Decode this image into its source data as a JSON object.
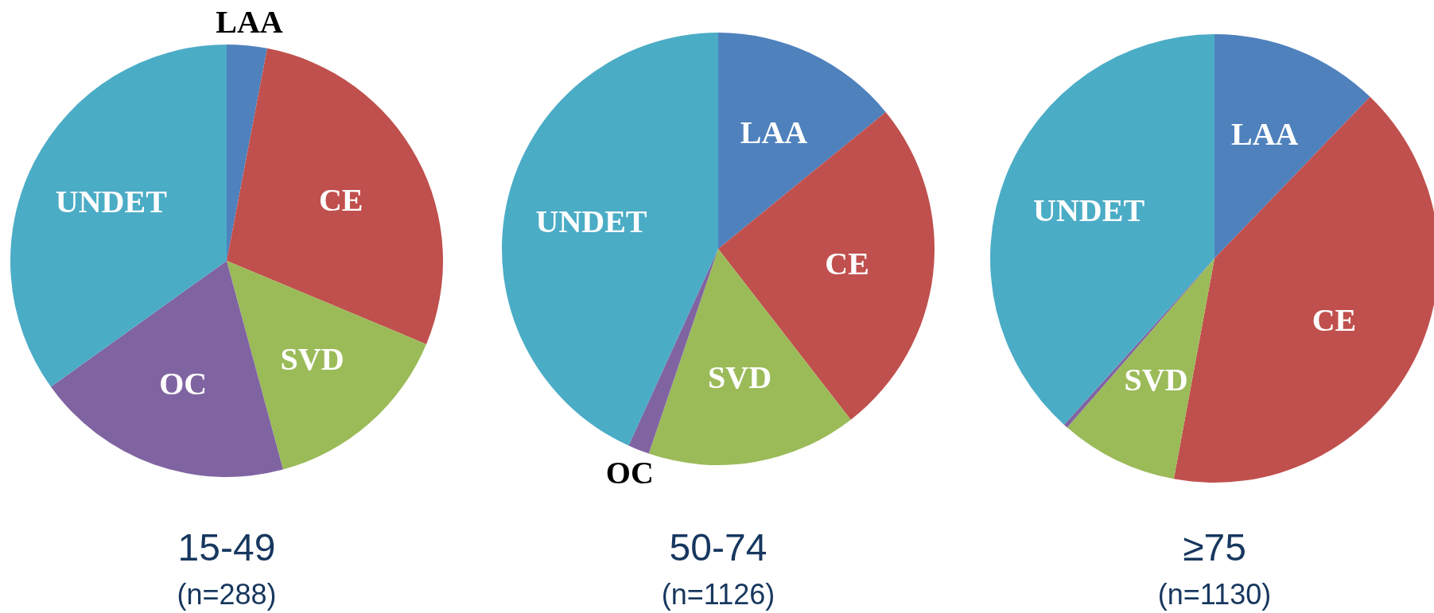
{
  "chart_data": [
    {
      "type": "pie",
      "title": "15-49",
      "subtitle": "(n=288)",
      "categories": [
        "LAA",
        "CE",
        "SVD",
        "OC",
        "UNDET"
      ],
      "values": [
        3,
        28.3,
        14.5,
        19.3,
        34.9
      ],
      "colors": [
        "#4f81bd",
        "#c0504d",
        "#9bbb59",
        "#8064a2",
        "#4bacc6"
      ]
    },
    {
      "type": "pie",
      "title": "50-74",
      "subtitle": "(n=1126)",
      "categories": [
        "LAA",
        "CE",
        "SVD",
        "OC",
        "UNDET"
      ],
      "values": [
        14.1,
        25.4,
        15.7,
        1.6,
        43.2
      ],
      "colors": [
        "#4f81bd",
        "#c0504d",
        "#9bbb59",
        "#8064a2",
        "#4bacc6"
      ]
    },
    {
      "type": "pie",
      "title": "≥75",
      "subtitle": "(n=1130)",
      "categories": [
        "LAA",
        "CE",
        "SVD",
        null,
        "UNDET"
      ],
      "values": [
        12.2,
        40.7,
        8.5,
        0.3,
        38.3
      ],
      "colors": [
        "#4f81bd",
        "#c0504d",
        "#9bbb59",
        "#8064a2",
        "#4bacc6"
      ]
    }
  ]
}
